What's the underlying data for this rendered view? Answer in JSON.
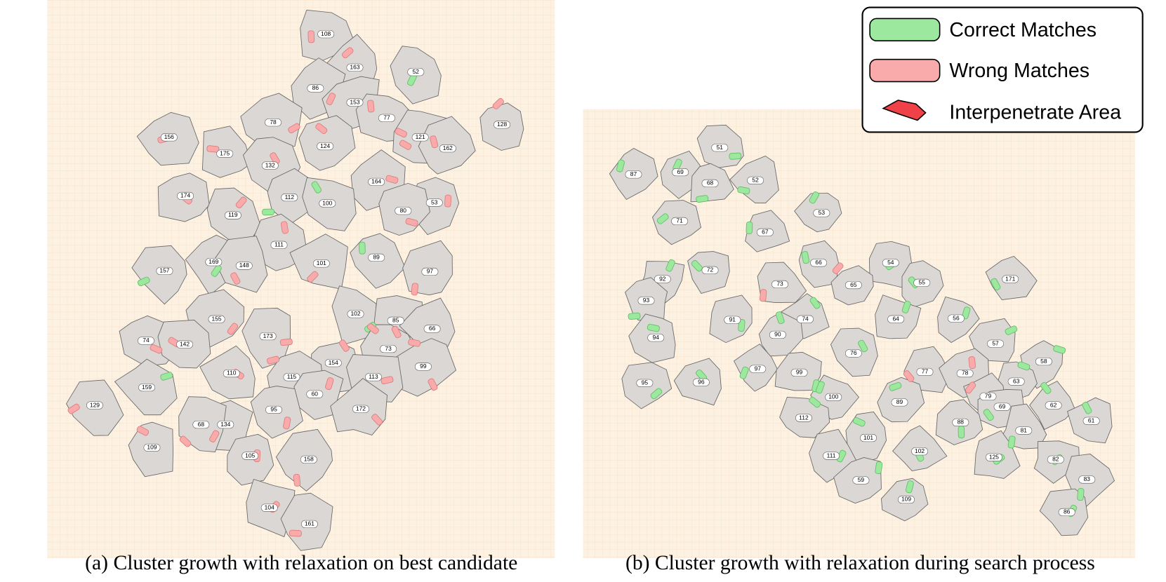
{
  "panel_a": {
    "caption": "(a) Cluster growth with relaxation on best candidate",
    "fragments": [
      "108",
      "163",
      "52",
      "86",
      "153",
      "77",
      "128",
      "156",
      "78",
      "121",
      "162",
      "175",
      "124",
      "132",
      "164",
      "174",
      "112",
      "100",
      "53",
      "119",
      "80",
      "111",
      "157",
      "169",
      "148",
      "101",
      "89",
      "97",
      "155",
      "102",
      "85",
      "66",
      "173",
      "74",
      "142",
      "154",
      "73",
      "99",
      "110",
      "115",
      "113",
      "159",
      "60",
      "172",
      "129",
      "95",
      "134",
      "68",
      "109",
      "158",
      "105",
      "104",
      "161"
    ]
  },
  "panel_b": {
    "caption": "(b) Cluster growth with relaxation during search process",
    "fragments": [
      "51",
      "87",
      "69",
      "68",
      "52",
      "53",
      "71",
      "67",
      "66",
      "54",
      "72",
      "55",
      "171",
      "92",
      "73",
      "65",
      "93",
      "91",
      "74",
      "64",
      "56",
      "90",
      "57",
      "94",
      "76",
      "58",
      "77",
      "78",
      "97",
      "99",
      "63",
      "95",
      "96",
      "100",
      "89",
      "79",
      "62",
      "69",
      "112",
      "88",
      "61",
      "101",
      "81",
      "102",
      "125",
      "82",
      "111",
      "83",
      "59",
      "109",
      "86"
    ]
  },
  "legend": {
    "items": [
      "Correct Matches",
      "Wrong Matches",
      "Interpenetrate Area"
    ]
  }
}
